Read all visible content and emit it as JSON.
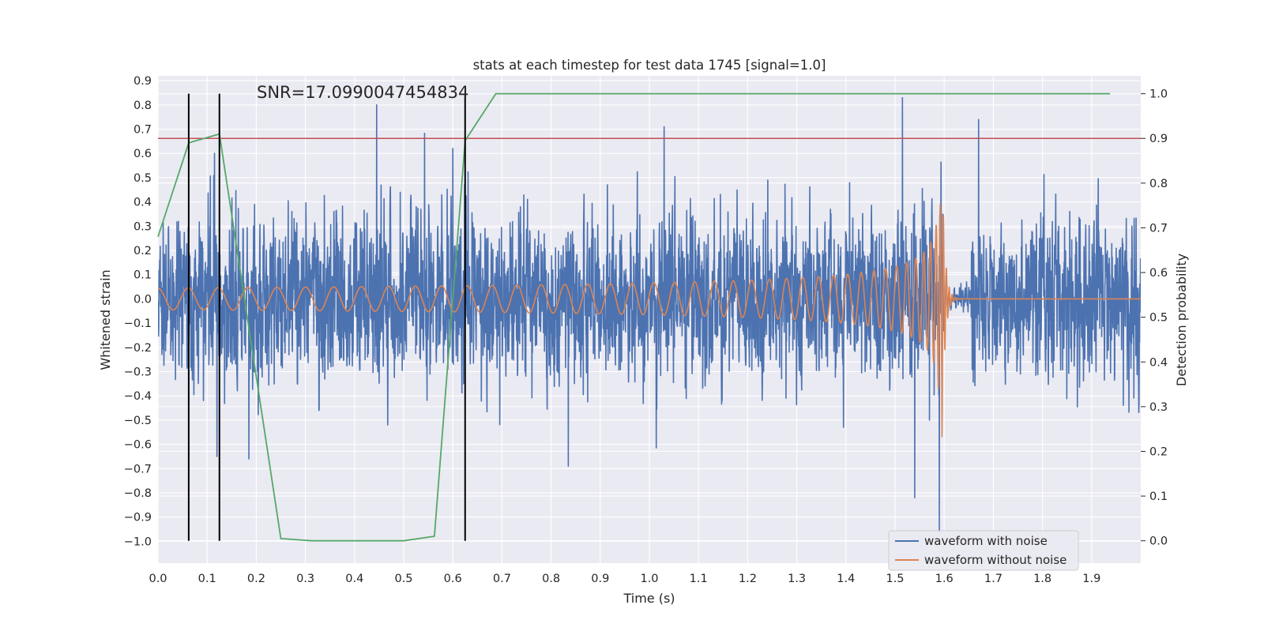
{
  "chart_data": {
    "type": "line",
    "title": "stats at each timestep for test data 1745 [signal=1.0]",
    "annotation": "SNR=17.0990047454834",
    "xlabel": "Time (s)",
    "ylabel": "Whitened strain",
    "y2label": "Detection probability",
    "xlim": [
      0.0,
      2.0
    ],
    "ylim": [
      -1.09,
      0.92
    ],
    "y2lim": [
      -0.05,
      1.04
    ],
    "x_ticks": [
      0.0,
      0.1,
      0.2,
      0.3,
      0.4,
      0.5,
      0.6,
      0.7,
      0.8,
      0.9,
      1.0,
      1.1,
      1.2,
      1.3,
      1.4,
      1.5,
      1.6,
      1.7,
      1.8,
      1.9
    ],
    "x_tick_labels": [
      "0.0",
      "0.1",
      "0.2",
      "0.3",
      "0.4",
      "0.5",
      "0.6",
      "0.7",
      "0.8",
      "0.9",
      "1.0",
      "1.1",
      "1.2",
      "1.3",
      "1.4",
      "1.5",
      "1.6",
      "1.7",
      "1.8",
      "1.9"
    ],
    "y_ticks": [
      0.9,
      0.8,
      0.7,
      0.6,
      0.5,
      0.4,
      0.3,
      0.2,
      0.1,
      0.0,
      -0.1,
      -0.2,
      -0.3,
      -0.4,
      -0.5,
      -0.6,
      -0.7,
      -0.8,
      -0.9,
      -1.0
    ],
    "y_tick_labels": [
      "0.9",
      "0.8",
      "0.7",
      "0.6",
      "0.5",
      "0.4",
      "0.3",
      "0.2",
      "0.1",
      "0.0",
      "−0.1",
      "−0.2",
      "−0.3",
      "−0.4",
      "−0.5",
      "−0.6",
      "−0.7",
      "−0.8",
      "−0.9",
      "−1.0"
    ],
    "y2_ticks": [
      1.0,
      0.9,
      0.8,
      0.7,
      0.6,
      0.5,
      0.4,
      0.3,
      0.2,
      0.1,
      0.0
    ],
    "y2_tick_labels": [
      "1.0",
      "0.9",
      "0.8",
      "0.7",
      "0.6",
      "0.5",
      "0.4",
      "0.3",
      "0.2",
      "0.1",
      "0.0"
    ],
    "grid": true,
    "legend_position": "bottom-right",
    "legend": [
      {
        "label": "waveform with noise",
        "color": "#4c72b0"
      },
      {
        "label": "waveform without noise",
        "color": "#dd8452"
      }
    ],
    "noisy_waveform": {
      "color": "#4c72b0",
      "x_range": [
        0.0,
        2.0
      ],
      "approx_amplitude": 0.3,
      "peaks": [
        {
          "x": 0.445,
          "y": 0.8
        },
        {
          "x": 1.03,
          "y": 0.71
        },
        {
          "x": 1.515,
          "y": 0.83
        },
        {
          "x": 1.67,
          "y": 0.74
        },
        {
          "x": 0.115,
          "y": 0.6
        },
        {
          "x": 0.6,
          "y": 0.62
        },
        {
          "x": 0.12,
          "y": -0.65
        },
        {
          "x": 0.185,
          "y": -0.66
        },
        {
          "x": 0.835,
          "y": -0.69
        },
        {
          "x": 1.54,
          "y": -0.82
        },
        {
          "x": 1.59,
          "y": -0.97
        }
      ]
    },
    "clean_waveform": {
      "color": "#dd8452",
      "merger_time": 1.595,
      "start_amplitude": 0.045,
      "peak_amplitude": 0.62,
      "ringdown_end": 1.62,
      "start_frequency_hz": 16,
      "end_frequency_hz": 170
    },
    "detection_probability": {
      "color": "#55a868",
      "x": [
        0.0,
        0.0625,
        0.125,
        0.25,
        0.3125,
        0.5,
        0.5625,
        0.625,
        0.6875,
        1.9375
      ],
      "y": [
        0.68,
        0.89,
        0.91,
        0.005,
        0.0,
        0.0,
        0.01,
        0.895,
        1.0,
        1.0
      ]
    },
    "threshold": {
      "y2": 0.9,
      "color": "#c44e52"
    },
    "marker_lines": {
      "color": "#000000",
      "x": [
        0.0625,
        0.125,
        0.625
      ],
      "y2_range": [
        0.0,
        1.0
      ]
    }
  }
}
